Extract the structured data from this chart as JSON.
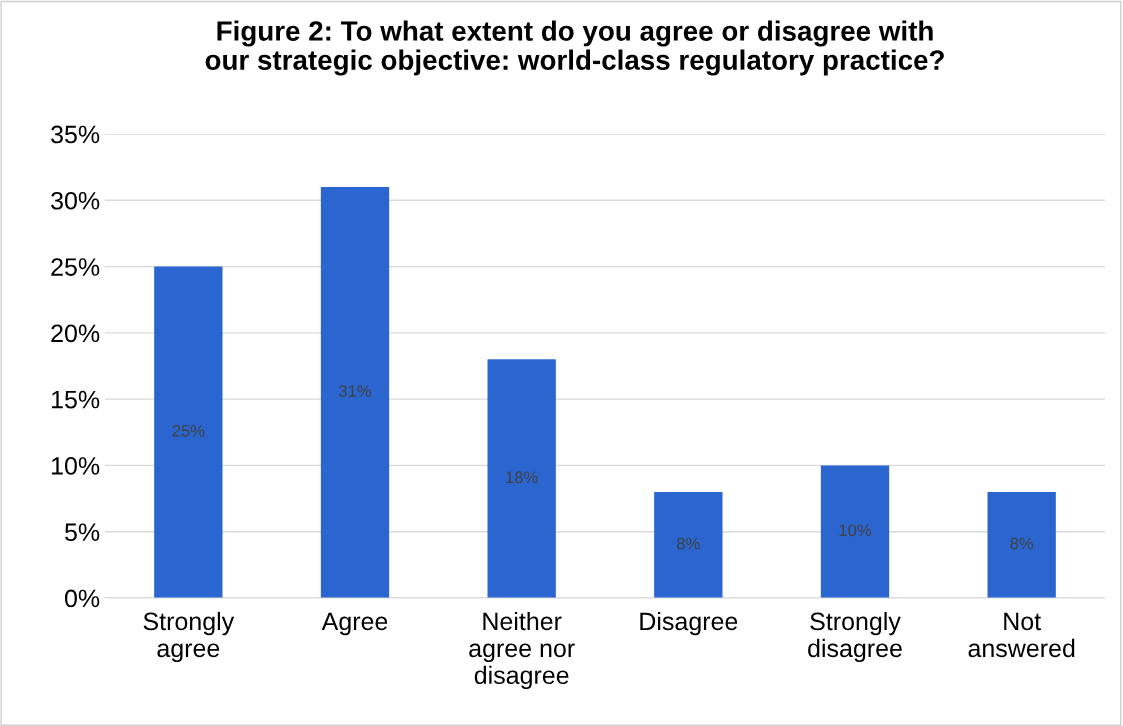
{
  "chart_data": {
    "type": "bar",
    "title": "Figure 2: To what extent do you agree or disagree with\nour strategic objective: world-class regulatory practice?",
    "categories": [
      "Strongly\nagree",
      "Agree",
      "Neither\nagree nor\ndisagree",
      "Disagree",
      "Strongly\ndisagree",
      "Not\nanswered"
    ],
    "values": [
      25,
      31,
      18,
      8,
      10,
      8
    ],
    "value_labels": [
      "25%",
      "31%",
      "18%",
      "8%",
      "10%",
      "8%"
    ],
    "color": "#2b66d0",
    "ylim": [
      0,
      35
    ],
    "yticks": [
      {
        "value": 0,
        "label": "0%"
      },
      {
        "value": 5,
        "label": "5%"
      },
      {
        "value": 10,
        "label": "10%"
      },
      {
        "value": 15,
        "label": "15%"
      },
      {
        "value": 20,
        "label": "20%"
      },
      {
        "value": 25,
        "label": "25%"
      },
      {
        "value": 30,
        "label": "30%"
      },
      {
        "value": 35,
        "label": "35%"
      }
    ],
    "grid": "y"
  }
}
